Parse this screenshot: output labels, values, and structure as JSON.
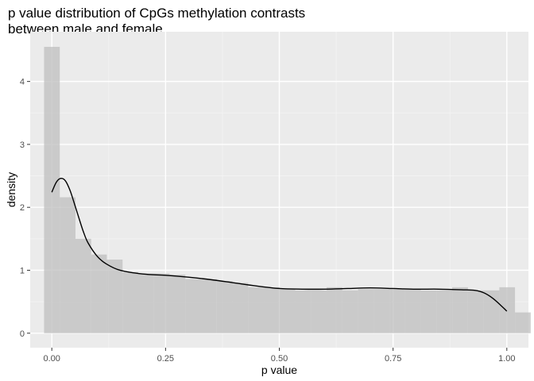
{
  "chart_data": {
    "type": "bar",
    "title_lines": [
      "p value distribution of CpGs methylation contrasts",
      "between male and female"
    ],
    "xlabel": "p value",
    "ylabel": "density",
    "xlim": [
      -0.0475,
      1.0475
    ],
    "ylim": [
      -0.23,
      4.79
    ],
    "x_ticks": [
      {
        "value": 0.0,
        "label": "0.00"
      },
      {
        "value": 0.25,
        "label": "0.25"
      },
      {
        "value": 0.5,
        "label": "0.50"
      },
      {
        "value": 0.75,
        "label": "0.75"
      },
      {
        "value": 1.0,
        "label": "1.00"
      }
    ],
    "y_ticks": [
      {
        "value": 0,
        "label": "0"
      },
      {
        "value": 1,
        "label": "1"
      },
      {
        "value": 2,
        "label": "2"
      },
      {
        "value": 3,
        "label": "3"
      },
      {
        "value": 4,
        "label": "4"
      }
    ],
    "grid": true,
    "legend": "none",
    "histogram": {
      "bin_start": -0.017,
      "bin_width": 0.0345,
      "densities": [
        4.55,
        2.16,
        1.5,
        1.25,
        1.17,
        0.97,
        0.95,
        0.95,
        0.93,
        0.86,
        0.86,
        0.83,
        0.8,
        0.73,
        0.73,
        0.7,
        0.68,
        0.68,
        0.73,
        0.68,
        0.7,
        0.7,
        0.7,
        0.7,
        0.68,
        0.68,
        0.73,
        0.68,
        0.68,
        0.73,
        0.33
      ]
    },
    "density_curve": {
      "x": [
        0.0,
        0.01,
        0.02,
        0.03,
        0.04,
        0.05,
        0.06,
        0.07,
        0.08,
        0.1,
        0.12,
        0.15,
        0.2,
        0.25,
        0.3,
        0.35,
        0.4,
        0.45,
        0.5,
        0.55,
        0.6,
        0.65,
        0.7,
        0.75,
        0.8,
        0.85,
        0.9,
        0.93,
        0.95,
        0.97,
        0.99,
        1.0
      ],
      "y": [
        2.24,
        2.4,
        2.46,
        2.42,
        2.27,
        2.05,
        1.82,
        1.6,
        1.43,
        1.22,
        1.1,
        1.0,
        0.94,
        0.92,
        0.89,
        0.85,
        0.8,
        0.75,
        0.71,
        0.7,
        0.7,
        0.71,
        0.72,
        0.71,
        0.7,
        0.7,
        0.69,
        0.68,
        0.64,
        0.55,
        0.42,
        0.35
      ]
    },
    "colors": {
      "panel_background": "#ebebeb",
      "grid_major": "#ffffff",
      "grid_minor": "#f4f4f4",
      "bars": "#bfbfbf",
      "bar_opacity": 0.75,
      "curve": "#000000"
    }
  }
}
